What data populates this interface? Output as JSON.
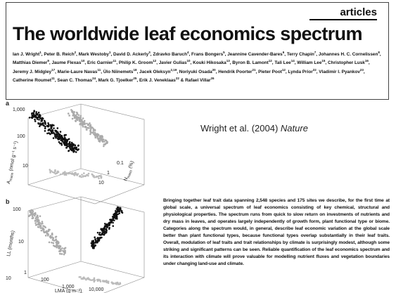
{
  "header": {
    "section": "articles",
    "title": "The worldwide leaf economics spectrum"
  },
  "authors": [
    {
      "name": "Ian J. Wright",
      "aff": "1"
    },
    {
      "name": "Peter B. Reich",
      "aff": "2"
    },
    {
      "name": "Mark Westoby",
      "aff": "1"
    },
    {
      "name": "David D. Ackerly",
      "aff": "3"
    },
    {
      "name": "Zdravko Baruch",
      "aff": "4"
    },
    {
      "name": "Frans Bongers",
      "aff": "5"
    },
    {
      "name": "Jeannine Cavender-Bares",
      "aff": "6"
    },
    {
      "name": "Terry Chapin",
      "aff": "7"
    },
    {
      "name": "Johannes H. C. Cornelissen",
      "aff": "8"
    },
    {
      "name": "Matthias Diemer",
      "aff": "9"
    },
    {
      "name": "Jaume Flexas",
      "aff": "10"
    },
    {
      "name": "Eric Garnier",
      "aff": "11"
    },
    {
      "name": "Philip K. Groom",
      "aff": "12"
    },
    {
      "name": "Javier Gulias",
      "aff": "10"
    },
    {
      "name": "Kouki Hikosaka",
      "aff": "13"
    },
    {
      "name": "Byron B. Lamont",
      "aff": "12"
    },
    {
      "name": "Tali Lee",
      "aff": "14"
    },
    {
      "name": "William Lee",
      "aff": "15"
    },
    {
      "name": "Christopher Lusk",
      "aff": "16"
    },
    {
      "name": "Jeremy J. Midgley",
      "aff": "17"
    },
    {
      "name": "Marie-Laure Navas",
      "aff": "11"
    },
    {
      "name": "Ülo Niinemets",
      "aff": "18"
    },
    {
      "name": "Jacek Oleksyn",
      "aff": "2,19"
    },
    {
      "name": "Noriyuki Osada",
      "aff": "20"
    },
    {
      "name": "Hendrik Poorter",
      "aff": "21"
    },
    {
      "name": "Pieter Poot",
      "aff": "12"
    },
    {
      "name": "Lynda Prior",
      "aff": "22"
    },
    {
      "name": "Vladimir I. Pyankov",
      "aff": "23"
    },
    {
      "name": "Catherine Roumet",
      "aff": "11"
    },
    {
      "name": "Sean C. Thomas",
      "aff": "24"
    },
    {
      "name": "Mark G. Tjoelker",
      "aff": "25"
    },
    {
      "name": "Erik J. Veneklaas",
      "aff": "22"
    },
    {
      "name": "Rafael Villar",
      "aff": "26"
    }
  ],
  "author_joiner": "&",
  "citation": {
    "text": "Wright et al. (2004) ",
    "journal": "Nature"
  },
  "panels": [
    {
      "label": "a",
      "ticks": [
        "1,000",
        "100",
        "10",
        "0.1",
        "1",
        "10"
      ],
      "y_axis": {
        "main": "A",
        "sub": "mass",
        "unit": " (nmol g⁻¹ s⁻¹)"
      },
      "x_axis": {
        "main": "N",
        "sub": "mass",
        "unit": " (%)"
      }
    },
    {
      "label": "b",
      "ticks": [
        "100",
        "10",
        "1",
        "10",
        "100",
        "1,000",
        "10,000"
      ],
      "y_axis": {
        "main": "LL",
        "sub": "",
        "unit": " (months)"
      },
      "x_axis": {
        "main": "LMA",
        "sub": "",
        "unit": " (g m⁻²)"
      }
    }
  ],
  "abstract": "Bringing together leaf trait data spanning 2,548 species and 175 sites we describe, for the first time at global scale, a universal spectrum of leaf economics consisting of key chemical, structural and physiological properties. The spectrum runs from quick to slow return on investments of nutrients and dry mass in leaves, and operates largely independently of growth form, plant functional type or biome. Categories along the spectrum would, in general, describe leaf economic variation at the global scale better than plant functional types, because functional types overlap substantially in their leaf traits. Overall, modulation of leaf traits and trait relationships by climate is surprisingly modest, although some striking and significant patterns can be seen. Reliable quantification of the leaf economics spectrum and its interaction with climate will prove valuable for modelling nutrient fluxes and vegetation boundaries under changing land-use and climate."
}
